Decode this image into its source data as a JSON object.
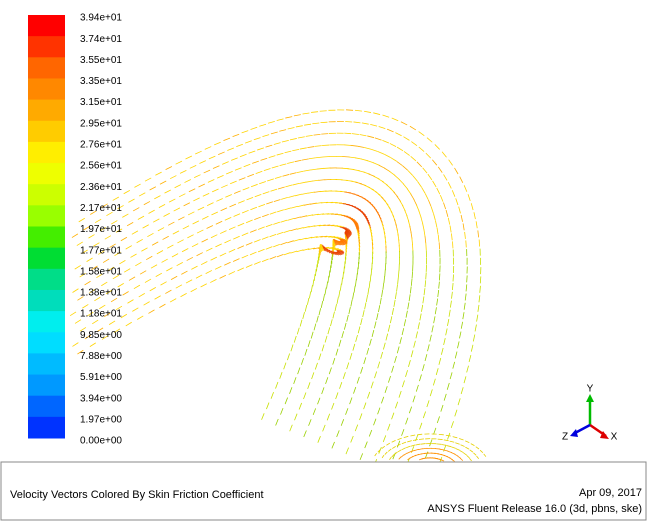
{
  "legend": {
    "labels": [
      "3.94e+01",
      "3.74e+01",
      "3.55e+01",
      "3.35e+01",
      "3.15e+01",
      "2.95e+01",
      "2.76e+01",
      "2.56e+01",
      "2.36e+01",
      "2.17e+01",
      "1.97e+01",
      "1.77e+01",
      "1.58e+01",
      "1.38e+01",
      "1.18e+01",
      "9.85e+00",
      "7.88e+00",
      "5.91e+00",
      "3.94e+00",
      "1.97e+00",
      "0.00e+00"
    ],
    "colors": [
      "#ff0000",
      "#ff3300",
      "#ff6600",
      "#ff8800",
      "#ffaa00",
      "#ffcc00",
      "#ffee00",
      "#eeff00",
      "#ccff00",
      "#99ff00",
      "#44ee00",
      "#00dd33",
      "#00dd88",
      "#00ddbb",
      "#00eeee",
      "#00ddff",
      "#00bbff",
      "#0099ff",
      "#0066ff",
      "#0033ff",
      "#0000ff"
    ]
  },
  "axes": {
    "y": "Y",
    "x": "X",
    "z": "Z"
  },
  "footer": {
    "title": "Velocity Vectors Colored By Skin Friction Coefficient",
    "date": "Apr 09, 2017",
    "release": "ANSYS Fluent Release 16.0 (3d, pbns, ske)"
  }
}
